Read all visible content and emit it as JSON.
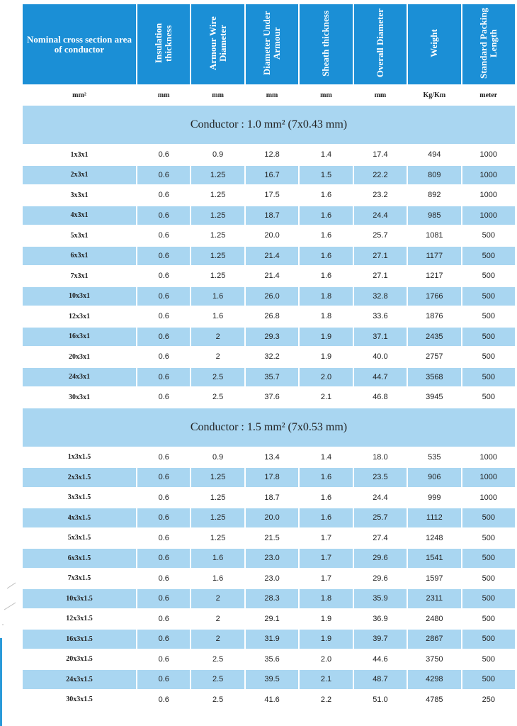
{
  "table": {
    "header": [
      "Nominal cross section area of conductor",
      "Insulation thickness",
      "Armour Wire Diameter",
      "Diameter Under Armour",
      "Sheath thickness",
      "Overall Diameter",
      "Weight",
      "Standard Packing Length"
    ],
    "units": [
      "mm²",
      "mm",
      "mm",
      "mm",
      "mm",
      "mm",
      "Kg/Km",
      "meter"
    ],
    "sections": [
      {
        "title": "Conductor : 1.0 mm² (7x0.43 mm)",
        "rows": [
          [
            "1x3x1",
            "0.6",
            "0.9",
            "12.8",
            "1.4",
            "17.4",
            "494",
            "1000"
          ],
          [
            "2x3x1",
            "0.6",
            "1.25",
            "16.7",
            "1.5",
            "22.2",
            "809",
            "1000"
          ],
          [
            "3x3x1",
            "0.6",
            "1.25",
            "17.5",
            "1.6",
            "23.2",
            "892",
            "1000"
          ],
          [
            "4x3x1",
            "0.6",
            "1.25",
            "18.7",
            "1.6",
            "24.4",
            "985",
            "1000"
          ],
          [
            "5x3x1",
            "0.6",
            "1.25",
            "20.0",
            "1.6",
            "25.7",
            "1081",
            "500"
          ],
          [
            "6x3x1",
            "0.6",
            "1.25",
            "21.4",
            "1.6",
            "27.1",
            "1177",
            "500"
          ],
          [
            "7x3x1",
            "0.6",
            "1.25",
            "21.4",
            "1.6",
            "27.1",
            "1217",
            "500"
          ],
          [
            "10x3x1",
            "0.6",
            "1.6",
            "26.0",
            "1.8",
            "32.8",
            "1766",
            "500"
          ],
          [
            "12x3x1",
            "0.6",
            "1.6",
            "26.8",
            "1.8",
            "33.6",
            "1876",
            "500"
          ],
          [
            "16x3x1",
            "0.6",
            "2",
            "29.3",
            "1.9",
            "37.1",
            "2435",
            "500"
          ],
          [
            "20x3x1",
            "0.6",
            "2",
            "32.2",
            "1.9",
            "40.0",
            "2757",
            "500"
          ],
          [
            "24x3x1",
            "0.6",
            "2.5",
            "35.7",
            "2.0",
            "44.7",
            "3568",
            "500"
          ],
          [
            "30x3x1",
            "0.6",
            "2.5",
            "37.6",
            "2.1",
            "46.8",
            "3945",
            "500"
          ]
        ]
      },
      {
        "title": "Conductor : 1.5 mm² (7x0.53 mm)",
        "rows": [
          [
            "1x3x1.5",
            "0.6",
            "0.9",
            "13.4",
            "1.4",
            "18.0",
            "535",
            "1000"
          ],
          [
            "2x3x1.5",
            "0.6",
            "1.25",
            "17.8",
            "1.6",
            "23.5",
            "906",
            "1000"
          ],
          [
            "3x3x1.5",
            "0.6",
            "1.25",
            "18.7",
            "1.6",
            "24.4",
            "999",
            "1000"
          ],
          [
            "4x3x1.5",
            "0.6",
            "1.25",
            "20.0",
            "1.6",
            "25.7",
            "1112",
            "500"
          ],
          [
            "5x3x1.5",
            "0.6",
            "1.25",
            "21.5",
            "1.7",
            "27.4",
            "1248",
            "500"
          ],
          [
            "6x3x1.5",
            "0.6",
            "1.6",
            "23.0",
            "1.7",
            "29.6",
            "1541",
            "500"
          ],
          [
            "7x3x1.5",
            "0.6",
            "1.6",
            "23.0",
            "1.7",
            "29.6",
            "1597",
            "500"
          ],
          [
            "10x3x1.5",
            "0.6",
            "2",
            "28.3",
            "1.8",
            "35.9",
            "2311",
            "500"
          ],
          [
            "12x3x1.5",
            "0.6",
            "2",
            "29.1",
            "1.9",
            "36.9",
            "2480",
            "500"
          ],
          [
            "16x3x1.5",
            "0.6",
            "2",
            "31.9",
            "1.9",
            "39.7",
            "2867",
            "500"
          ],
          [
            "20x3x1.5",
            "0.6",
            "2.5",
            "35.6",
            "2.0",
            "44.6",
            "3750",
            "500"
          ],
          [
            "24x3x1.5",
            "0.6",
            "2.5",
            "39.5",
            "2.1",
            "48.7",
            "4298",
            "500"
          ],
          [
            "30x3x1.5",
            "0.6",
            "2.5",
            "41.6",
            "2.2",
            "51.0",
            "4785",
            "250"
          ]
        ]
      }
    ]
  }
}
